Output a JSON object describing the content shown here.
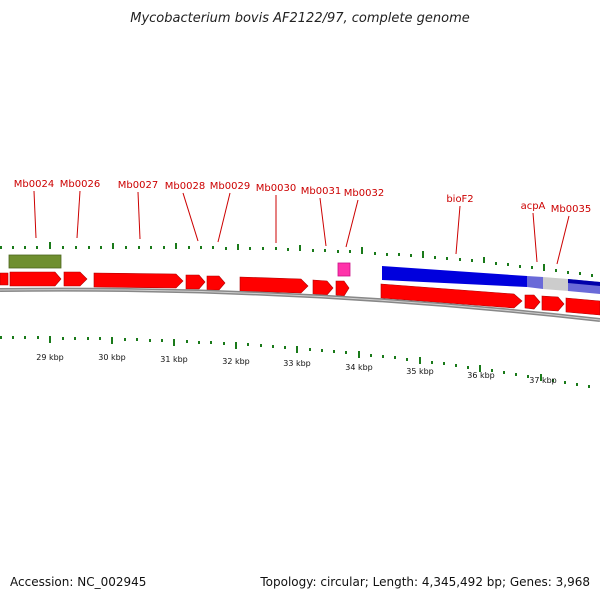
{
  "title": "Mycobacterium bovis AF2122/97, complete genome",
  "footer": {
    "accession": "Accession: NC_002945",
    "summary": "Topology: circular; Length: 4,345,492 bp; Genes: 3,968"
  },
  "colors": {
    "cds": "#ff0000",
    "cds_edge": "#aa0000",
    "rna": "#ff33aa",
    "gene_box": "#6f8f2f",
    "blue_feature": "#0000dd",
    "tick": "#1a7a1a",
    "backbone": "#888888",
    "label": "#cc0000"
  },
  "axis": {
    "unit": "kbp",
    "labels": [
      "29 kbp",
      "30 kbp",
      "31 kbp",
      "32 kbp",
      "33 kbp",
      "34 kbp",
      "35 kbp",
      "36 kbp",
      "37 kbp"
    ]
  },
  "gene_labels": [
    {
      "name": "Mb0024"
    },
    {
      "name": "Mb0026"
    },
    {
      "name": "Mb0027"
    },
    {
      "name": "Mb0028"
    },
    {
      "name": "Mb0029"
    },
    {
      "name": "Mb0030"
    },
    {
      "name": "Mb0031"
    },
    {
      "name": "Mb0032"
    },
    {
      "name": "bioF2"
    },
    {
      "name": "acpA"
    },
    {
      "name": "Mb0035"
    }
  ]
}
